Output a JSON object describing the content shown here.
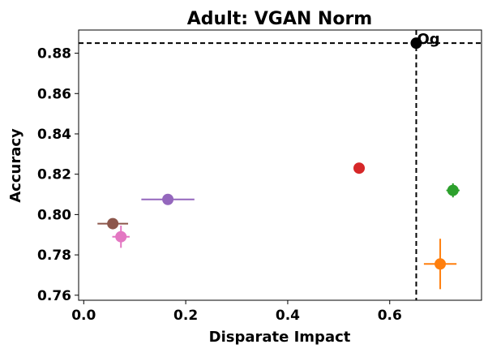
{
  "chart_data": {
    "type": "scatter",
    "title": "Adult: VGAN Norm",
    "xlabel": "Disparate Impact",
    "ylabel": "Accuracy",
    "xlim": [
      -0.01,
      0.78
    ],
    "ylim": [
      0.7575,
      0.8915
    ],
    "xticks": [
      0.0,
      0.2,
      0.4,
      0.6
    ],
    "xtick_labels": [
      "0.0",
      "0.2",
      "0.4",
      "0.6"
    ],
    "yticks": [
      0.76,
      0.78,
      0.8,
      0.82,
      0.84,
      0.86,
      0.88
    ],
    "ytick_labels": [
      "0.76",
      "0.78",
      "0.80",
      "0.82",
      "0.84",
      "0.86",
      "0.88"
    ],
    "grid": false,
    "reference_lines": {
      "x": 0.652,
      "y": 0.885,
      "style": "dashed"
    },
    "annotations": [
      {
        "text": "Og",
        "x": 0.652,
        "y": 0.885
      }
    ],
    "points": [
      {
        "x": 0.652,
        "y": 0.885,
        "xerr": 0.0,
        "yerr": 0.0,
        "color": "#000000"
      },
      {
        "x": 0.699,
        "y": 0.7755,
        "xerr": 0.032,
        "yerr": 0.0125,
        "color": "#ff7f0e"
      },
      {
        "x": 0.724,
        "y": 0.812,
        "xerr": 0.013,
        "yerr": 0.0035,
        "color": "#2ca02c"
      },
      {
        "x": 0.54,
        "y": 0.823,
        "xerr": 0.0,
        "yerr": 0.0,
        "color": "#d62728"
      },
      {
        "x": 0.165,
        "y": 0.8075,
        "xerr": 0.052,
        "yerr": 0.0,
        "color": "#9467bd"
      },
      {
        "x": 0.057,
        "y": 0.7955,
        "xerr": 0.03,
        "yerr": 0.0022,
        "color": "#8c564b"
      },
      {
        "x": 0.073,
        "y": 0.789,
        "xerr": 0.017,
        "yerr": 0.0055,
        "color": "#e377c2"
      }
    ]
  }
}
